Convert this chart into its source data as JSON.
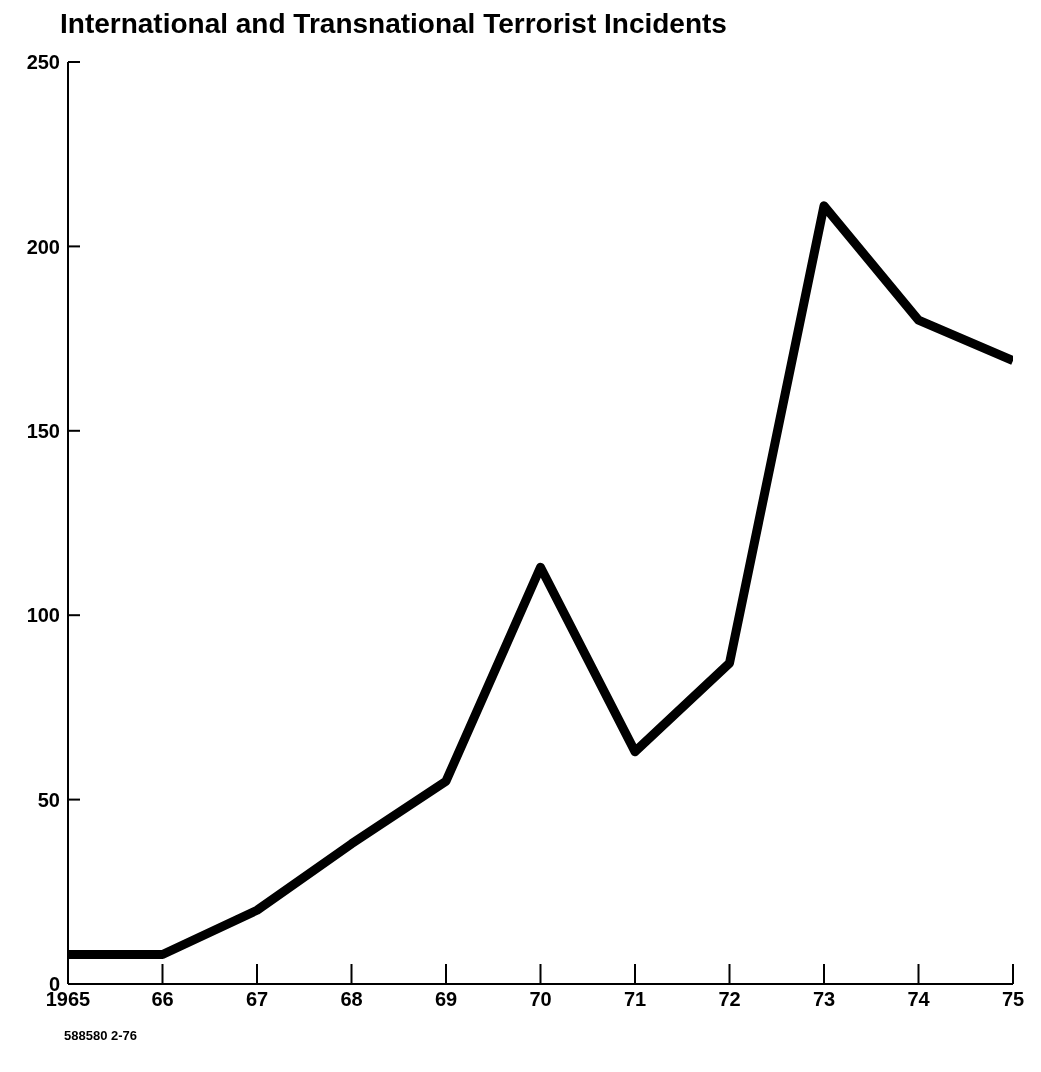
{
  "chart_data": {
    "type": "line",
    "title": "International and Transnational Terrorist Incidents",
    "x": [
      1965,
      1966,
      1967,
      1968,
      1969,
      1970,
      1971,
      1972,
      1973,
      1974,
      1975
    ],
    "series": [
      {
        "color": "#000000",
        "values": [
          8,
          8,
          20,
          38,
          55,
          113,
          63,
          87,
          211,
          180,
          169
        ]
      }
    ],
    "xlim": [
      1965,
      1975
    ],
    "xticks": [
      1965,
      {
        "value": 1966,
        "label": "66"
      },
      {
        "value": 1967,
        "label": "67"
      },
      {
        "value": 1968,
        "label": "68"
      },
      {
        "value": 1969,
        "label": "69"
      },
      {
        "value": 1970,
        "label": "70"
      },
      {
        "value": 1971,
        "label": "71"
      },
      {
        "value": 1972,
        "label": "72"
      },
      {
        "value": 1973,
        "label": "73"
      },
      {
        "value": 1974,
        "label": "74"
      },
      {
        "value": 1975,
        "label": "75"
      }
    ],
    "ylim": [
      0,
      250
    ],
    "yticks": [
      0,
      50,
      100,
      150,
      200,
      250
    ],
    "grid": false,
    "legend": false,
    "marker": "none",
    "line_style": "solid",
    "annotations": [
      "588580 2-76"
    ]
  }
}
